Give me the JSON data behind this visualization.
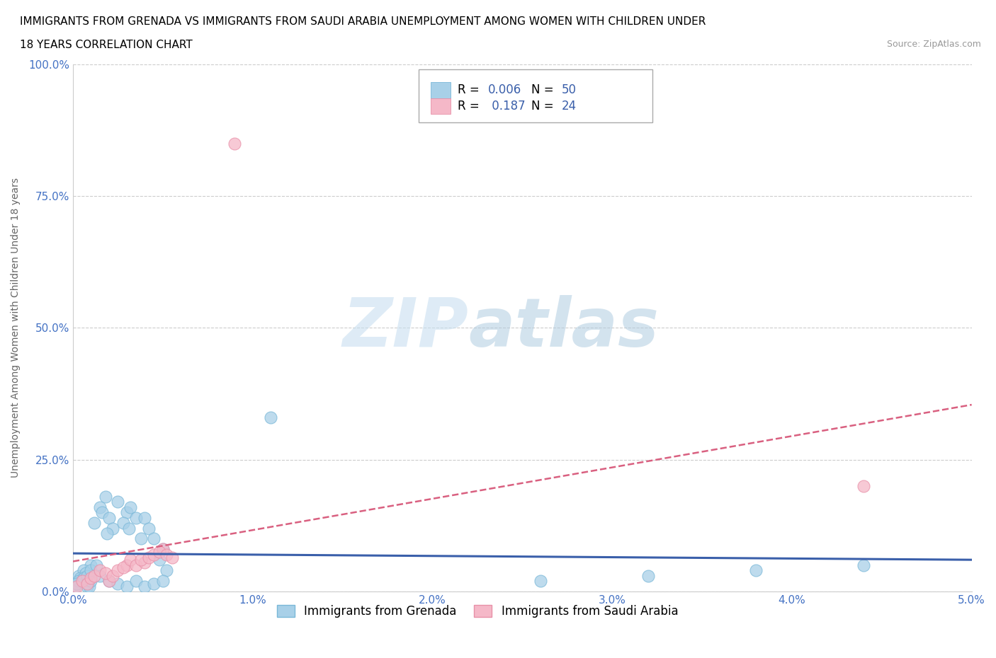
{
  "title_line1": "IMMIGRANTS FROM GRENADA VS IMMIGRANTS FROM SAUDI ARABIA UNEMPLOYMENT AMONG WOMEN WITH CHILDREN UNDER",
  "title_line2": "18 YEARS CORRELATION CHART",
  "source_text": "Source: ZipAtlas.com",
  "ylabel": "Unemployment Among Women with Children Under 18 years",
  "xlim": [
    0.0,
    0.05
  ],
  "ylim": [
    0.0,
    1.0
  ],
  "xticks": [
    0.0,
    0.01,
    0.02,
    0.03,
    0.04,
    0.05
  ],
  "xticklabels": [
    "0.0%",
    "1.0%",
    "2.0%",
    "3.0%",
    "4.0%",
    "5.0%"
  ],
  "yticks": [
    0.0,
    0.25,
    0.5,
    0.75,
    1.0
  ],
  "yticklabels": [
    "0.0%",
    "25.0%",
    "50.0%",
    "75.0%",
    "100.0%"
  ],
  "grenada_color": "#a8d0e8",
  "grenada_edge": "#7ab8d8",
  "saudi_color": "#f5b8c8",
  "saudi_edge": "#e890a8",
  "grenada_line_color": "#3a5faa",
  "saudi_line_color": "#d96080",
  "R_grenada": 0.006,
  "N_grenada": 50,
  "R_saudi": 0.187,
  "N_saudi": 24,
  "watermark_zip": "ZIP",
  "watermark_atlas": "atlas",
  "background_color": "#ffffff",
  "grid_color": "#cccccc",
  "title_fontsize": 11,
  "axis_label_fontsize": 10,
  "tick_fontsize": 11,
  "legend_label_grenada": "Immigrants from Grenada",
  "legend_label_saudi": "Immigrants from Saudi Arabia",
  "grenada_x": [
    0.0005,
    0.001,
    0.0008,
    0.0003,
    0.0006,
    0.0002,
    0.0004,
    0.0007,
    0.0009,
    0.001,
    0.0015,
    0.0012,
    0.0018,
    0.0016,
    0.002,
    0.0022,
    0.0019,
    0.0025,
    0.003,
    0.0028,
    0.0032,
    0.0035,
    0.0031,
    0.0038,
    0.004,
    0.0042,
    0.0045,
    0.005,
    0.0048,
    0.0052,
    0.0001,
    0.0003,
    0.0002,
    0.0006,
    0.0008,
    0.001,
    0.0013,
    0.0015,
    0.002,
    0.0025,
    0.003,
    0.0035,
    0.004,
    0.0045,
    0.005,
    0.044,
    0.038,
    0.032,
    0.026,
    0.011
  ],
  "grenada_y": [
    0.02,
    0.05,
    0.01,
    0.03,
    0.04,
    0.015,
    0.025,
    0.035,
    0.01,
    0.02,
    0.16,
    0.13,
    0.18,
    0.15,
    0.14,
    0.12,
    0.11,
    0.17,
    0.15,
    0.13,
    0.16,
    0.14,
    0.12,
    0.1,
    0.14,
    0.12,
    0.1,
    0.08,
    0.06,
    0.04,
    0.01,
    0.02,
    0.015,
    0.025,
    0.03,
    0.04,
    0.05,
    0.03,
    0.02,
    0.015,
    0.01,
    0.02,
    0.01,
    0.015,
    0.02,
    0.05,
    0.04,
    0.03,
    0.02,
    0.33
  ],
  "saudi_x": [
    0.0002,
    0.0005,
    0.0008,
    0.001,
    0.0012,
    0.0015,
    0.002,
    0.0018,
    0.0022,
    0.0025,
    0.003,
    0.0028,
    0.0032,
    0.0035,
    0.004,
    0.0038,
    0.0042,
    0.0045,
    0.005,
    0.0048,
    0.0052,
    0.0055,
    0.044,
    0.009
  ],
  "saudi_y": [
    0.01,
    0.02,
    0.015,
    0.025,
    0.03,
    0.04,
    0.02,
    0.035,
    0.03,
    0.04,
    0.05,
    0.045,
    0.06,
    0.05,
    0.055,
    0.06,
    0.065,
    0.07,
    0.08,
    0.075,
    0.07,
    0.065,
    0.2,
    0.85
  ]
}
